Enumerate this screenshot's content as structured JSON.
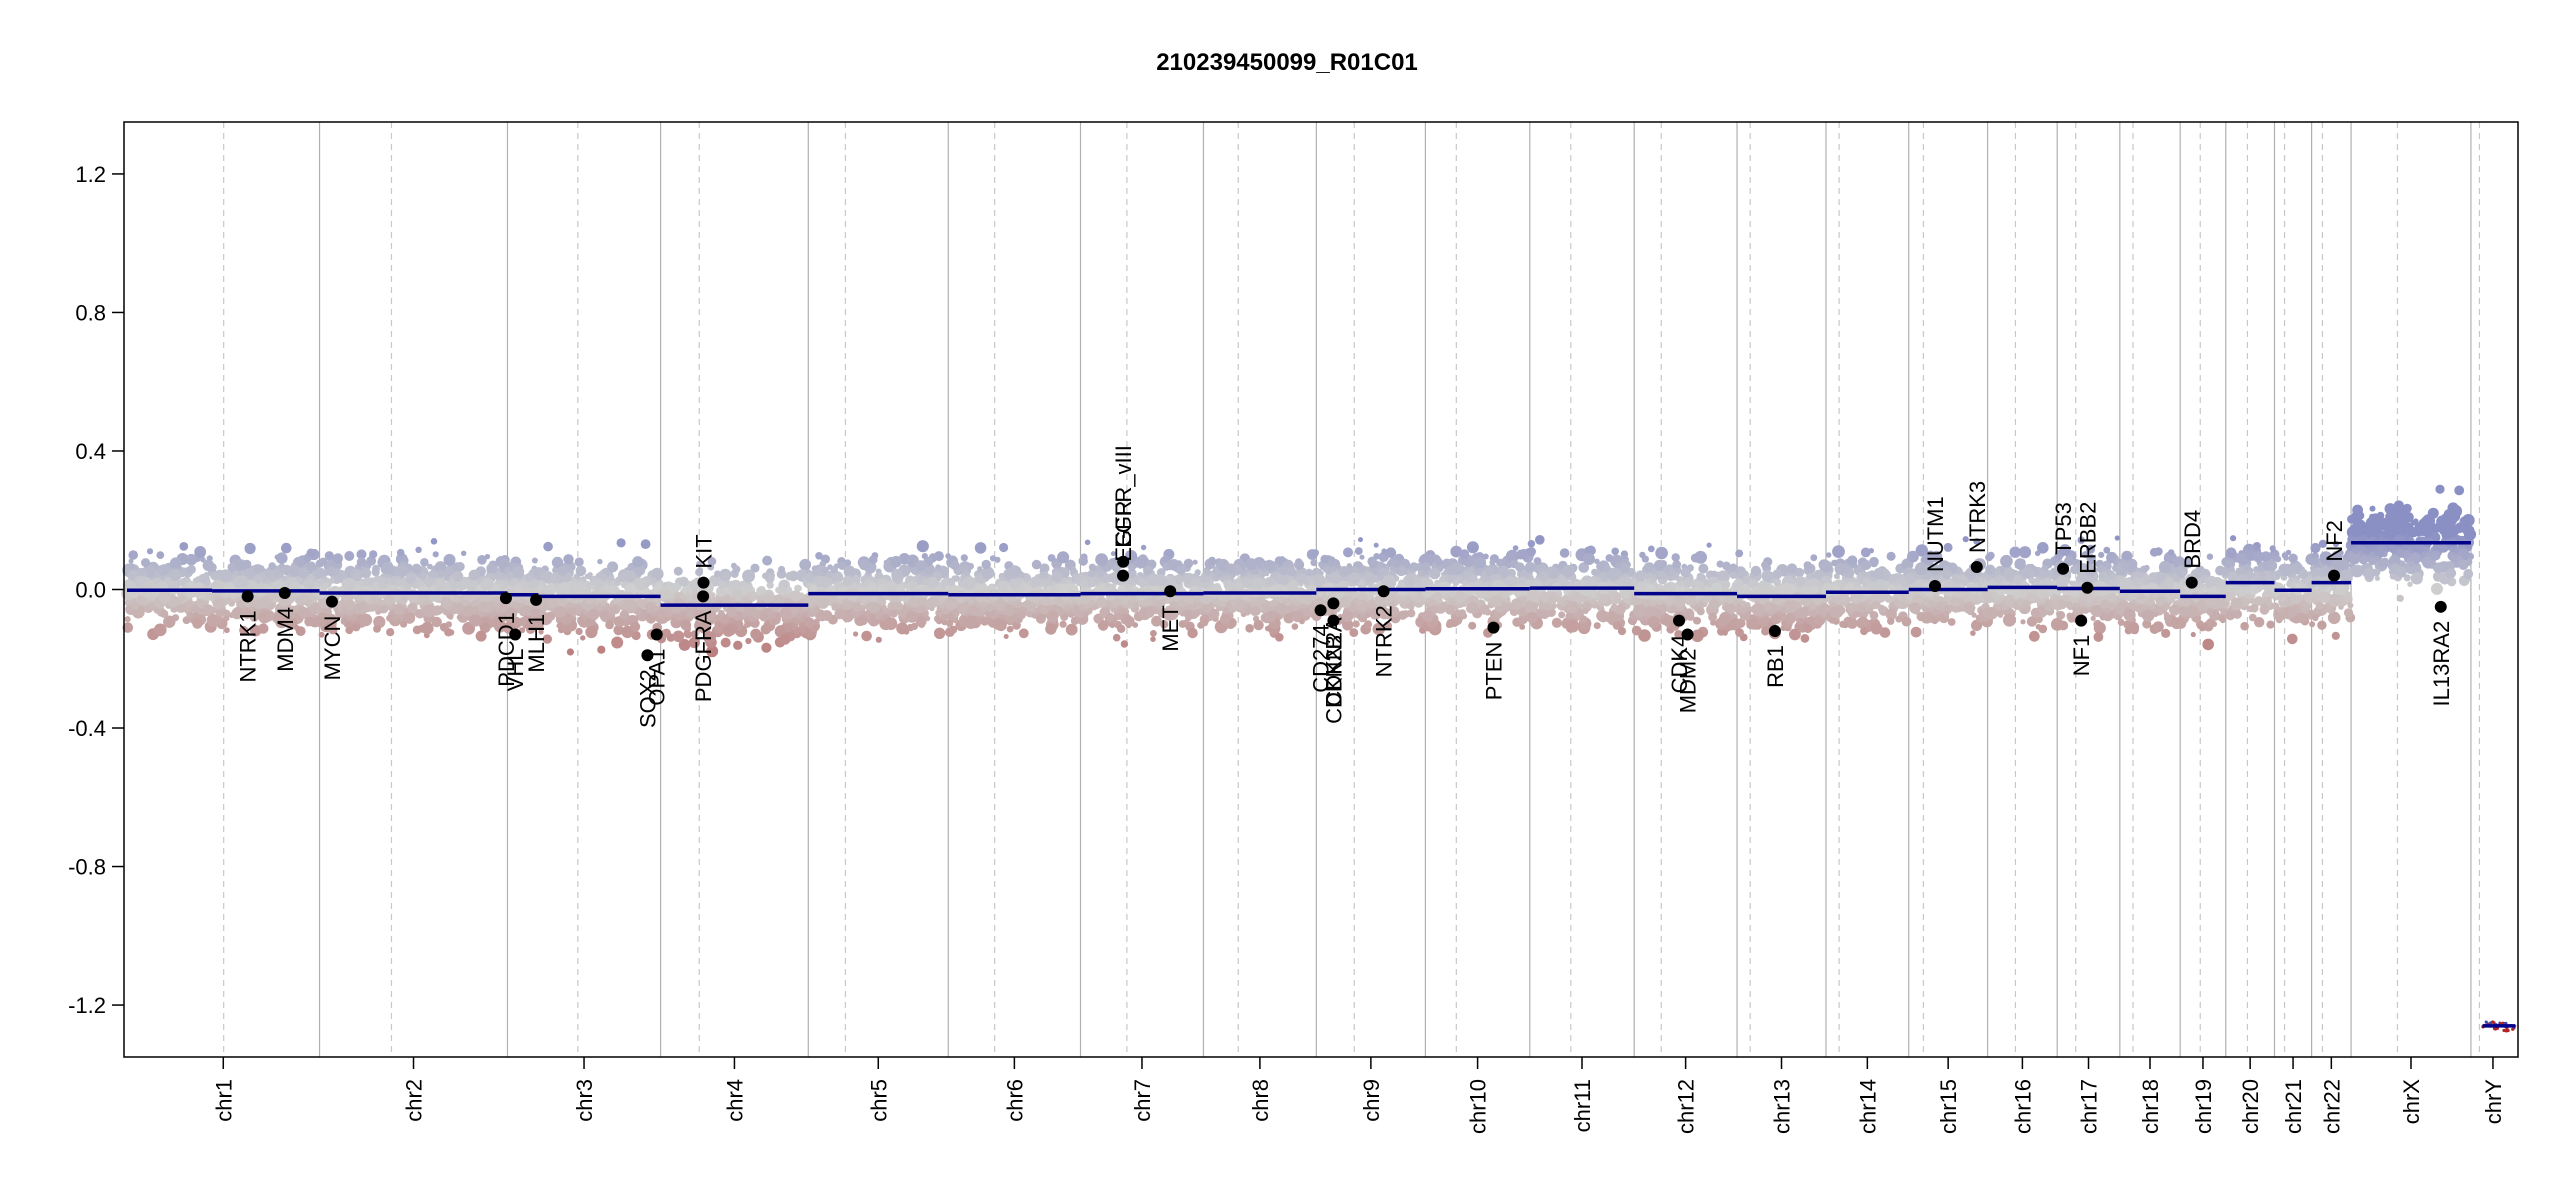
{
  "chart_data": {
    "type": "scatter",
    "title": "210239450099_R01C01",
    "xlabel": "",
    "ylabel": "",
    "ylim": [
      -1.35,
      1.35
    ],
    "y_ticks": [
      "-1.2",
      "-0.8",
      "-0.4",
      "0.0",
      "0.4",
      "0.8",
      "1.2"
    ],
    "y_tick_values": [
      -1.2,
      -0.8,
      -0.4,
      0.0,
      0.4,
      0.8,
      1.2
    ],
    "grid": false,
    "colors": {
      "gain": "#8a8fc4",
      "neutral": "#cfcfcf",
      "loss": "#bc7f7f",
      "segment": "#00008b",
      "gene": "#000000",
      "boundary": "#b0b0b0",
      "centromere": "#c8c8c8"
    },
    "chromosomes": [
      {
        "name": "chr1",
        "size": 249,
        "centromere": 125,
        "segments": [
          {
            "start": 0,
            "end": 110,
            "value": -0.002
          },
          {
            "start": 110,
            "end": 249,
            "value": -0.004
          }
        ]
      },
      {
        "name": "chr2",
        "size": 243,
        "centromere": 93,
        "segments": [
          {
            "start": 0,
            "end": 243,
            "value": -0.01
          }
        ]
      },
      {
        "name": "chr3",
        "size": 198,
        "centromere": 91,
        "segments": [
          {
            "start": 0,
            "end": 40,
            "value": -0.015
          },
          {
            "start": 40,
            "end": 198,
            "value": -0.02
          }
        ]
      },
      {
        "name": "chr4",
        "size": 191,
        "centromere": 50,
        "segments": [
          {
            "start": 0,
            "end": 191,
            "value": -0.045
          }
        ]
      },
      {
        "name": "chr5",
        "size": 181,
        "centromere": 48,
        "segments": [
          {
            "start": 0,
            "end": 181,
            "value": -0.012
          }
        ]
      },
      {
        "name": "chr6",
        "size": 171,
        "centromere": 60,
        "segments": [
          {
            "start": 0,
            "end": 171,
            "value": -0.015
          }
        ]
      },
      {
        "name": "chr7",
        "size": 159,
        "centromere": 60,
        "segments": [
          {
            "start": 0,
            "end": 159,
            "value": -0.012
          }
        ]
      },
      {
        "name": "chr8",
        "size": 146,
        "centromere": 45,
        "segments": [
          {
            "start": 0,
            "end": 146,
            "value": -0.01
          }
        ]
      },
      {
        "name": "chr9",
        "size": 141,
        "centromere": 49,
        "segments": [
          {
            "start": 0,
            "end": 141,
            "value": 0.0
          }
        ]
      },
      {
        "name": "chr10",
        "size": 135,
        "centromere": 40,
        "segments": [
          {
            "start": 0,
            "end": 135,
            "value": 0.002
          }
        ]
      },
      {
        "name": "chr11",
        "size": 135,
        "centromere": 53,
        "segments": [
          {
            "start": 0,
            "end": 135,
            "value": 0.004
          }
        ]
      },
      {
        "name": "chr12",
        "size": 133,
        "centromere": 35,
        "segments": [
          {
            "start": 0,
            "end": 133,
            "value": -0.012
          }
        ]
      },
      {
        "name": "chr13",
        "size": 115,
        "centromere": 17,
        "segments": [
          {
            "start": 0,
            "end": 115,
            "value": -0.02
          }
        ]
      },
      {
        "name": "chr14",
        "size": 107,
        "centromere": 17,
        "segments": [
          {
            "start": 0,
            "end": 107,
            "value": -0.008
          }
        ]
      },
      {
        "name": "chr15",
        "size": 102,
        "centromere": 19,
        "segments": [
          {
            "start": 0,
            "end": 102,
            "value": 0.0
          }
        ]
      },
      {
        "name": "chr16",
        "size": 90,
        "centromere": 36,
        "segments": [
          {
            "start": 0,
            "end": 90,
            "value": 0.006
          }
        ]
      },
      {
        "name": "chr17",
        "size": 81,
        "centromere": 24,
        "segments": [
          {
            "start": 0,
            "end": 81,
            "value": 0.003
          }
        ]
      },
      {
        "name": "chr18",
        "size": 78,
        "centromere": 17,
        "segments": [
          {
            "start": 0,
            "end": 78,
            "value": -0.005
          }
        ]
      },
      {
        "name": "chr19",
        "size": 59,
        "centromere": 26,
        "segments": [
          {
            "start": 0,
            "end": 59,
            "value": -0.02
          }
        ]
      },
      {
        "name": "chr20",
        "size": 63,
        "centromere": 28,
        "segments": [
          {
            "start": 0,
            "end": 63,
            "value": 0.02
          }
        ]
      },
      {
        "name": "chr21",
        "size": 48,
        "centromere": 13,
        "segments": [
          {
            "start": 0,
            "end": 48,
            "value": -0.002
          }
        ]
      },
      {
        "name": "chr22",
        "size": 51,
        "centromere": 14,
        "segments": [
          {
            "start": 0,
            "end": 51,
            "value": 0.02
          }
        ]
      },
      {
        "name": "chrX",
        "size": 155,
        "centromere": 60,
        "segments": [
          {
            "start": 0,
            "end": 155,
            "value": 0.135
          }
        ]
      },
      {
        "name": "chrY",
        "size": 57,
        "centromere": 11,
        "segments": [
          {
            "start": 15,
            "end": 57,
            "value": -1.26
          }
        ]
      }
    ],
    "genes": [
      {
        "name": "NTRK1",
        "chr": "chr1",
        "pos": 156,
        "value": -0.02
      },
      {
        "name": "MDM4",
        "chr": "chr1",
        "pos": 204,
        "value": -0.01
      },
      {
        "name": "MYCN",
        "chr": "chr2",
        "pos": 16,
        "value": -0.035
      },
      {
        "name": "PDCD1",
        "chr": "chr2",
        "pos": 241,
        "value": -0.025
      },
      {
        "name": "VHL",
        "chr": "chr3",
        "pos": 10,
        "value": -0.13
      },
      {
        "name": "MLH1",
        "chr": "chr3",
        "pos": 37,
        "value": -0.03
      },
      {
        "name": "SOX2",
        "chr": "chr3",
        "pos": 181,
        "value": -0.19
      },
      {
        "name": "OPA1",
        "chr": "chr3",
        "pos": 193,
        "value": -0.13
      },
      {
        "name": "PDGFRA",
        "chr": "chr4",
        "pos": 55,
        "value": -0.02
      },
      {
        "name": "KIT",
        "chr": "chr4",
        "pos": 55.5,
        "value": 0.02
      },
      {
        "name": "EGFR",
        "chr": "chr7",
        "pos": 55,
        "value": 0.04
      },
      {
        "name": "EGFR_vIII",
        "chr": "chr7",
        "pos": 55.2,
        "value": 0.08
      },
      {
        "name": "MET",
        "chr": "chr7",
        "pos": 116,
        "value": -0.005
      },
      {
        "name": "CDKN2A",
        "chr": "chr9",
        "pos": 22,
        "value": -0.04
      },
      {
        "name": "CDKN2B",
        "chr": "chr9",
        "pos": 22.1,
        "value": -0.09
      },
      {
        "name": "CD274",
        "chr": "chr9",
        "pos": 5.5,
        "value": -0.06
      },
      {
        "name": "NTRK2",
        "chr": "chr9",
        "pos": 87,
        "value": -0.005
      },
      {
        "name": "PTEN",
        "chr": "chr10",
        "pos": 88,
        "value": -0.11
      },
      {
        "name": "CDK4",
        "chr": "chr12",
        "pos": 58,
        "value": -0.09
      },
      {
        "name": "MDM2",
        "chr": "chr12",
        "pos": 69,
        "value": -0.13
      },
      {
        "name": "RB1",
        "chr": "chr13",
        "pos": 49,
        "value": -0.12
      },
      {
        "name": "NUTM1",
        "chr": "chr15",
        "pos": 34,
        "value": 0.01
      },
      {
        "name": "NTRK3",
        "chr": "chr15",
        "pos": 88,
        "value": 0.065
      },
      {
        "name": "TP53",
        "chr": "chr17",
        "pos": 7.6,
        "value": 0.06
      },
      {
        "name": "ERBB2",
        "chr": "chr17",
        "pos": 39,
        "value": 0.005
      },
      {
        "name": "NF1",
        "chr": "chr17",
        "pos": 31,
        "value": -0.09
      },
      {
        "name": "BRD4",
        "chr": "chr19",
        "pos": 15,
        "value": 0.02
      },
      {
        "name": "NF2",
        "chr": "chr22",
        "pos": 29,
        "value": 0.04
      },
      {
        "name": "IL13RA2",
        "chr": "chrX",
        "pos": 116,
        "value": -0.05
      }
    ]
  }
}
